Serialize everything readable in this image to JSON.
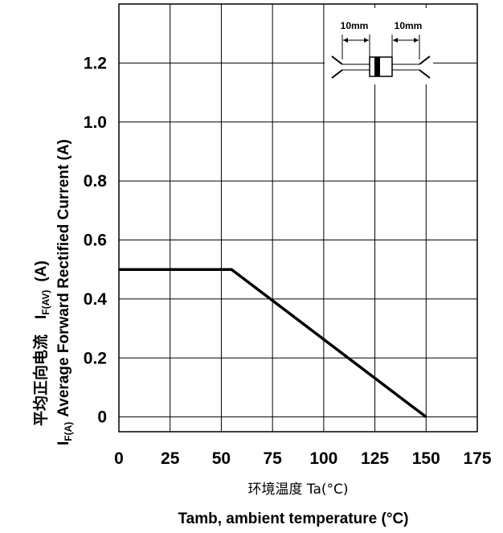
{
  "chart_data": {
    "type": "line",
    "x_ticks": [
      0,
      25,
      50,
      75,
      100,
      125,
      150,
      175
    ],
    "y_ticks": [
      0,
      0.2,
      0.4,
      0.6,
      0.8,
      1.0,
      1.2
    ],
    "y_tick_labels": [
      "0",
      "0.2",
      "0.4",
      "0.6",
      "0.8",
      "1.0",
      "1.2"
    ],
    "xlim": [
      0,
      175
    ],
    "ylim": [
      -0.05,
      1.4
    ],
    "grid": true,
    "series": [
      {
        "x": [
          0,
          55,
          150
        ],
        "y": [
          0.5,
          0.5,
          0.0
        ]
      }
    ],
    "xlabel_cn": "环境温度 Ta(°C)",
    "xlabel": "Tamb, ambient temperature (°C)",
    "ylabel_cn": "平均正向电流",
    "ylabel_symbol": "I",
    "ylabel_symbol_sub": "F(AV)",
    "ylabel_unit": "(A)",
    "ylabel_prefix": "I",
    "ylabel_prefix_sub": "F(A)",
    "ylabel": "Average Forward Rectified Current (A)",
    "inset": {
      "left_label": "10mm",
      "right_label": "10mm"
    }
  }
}
